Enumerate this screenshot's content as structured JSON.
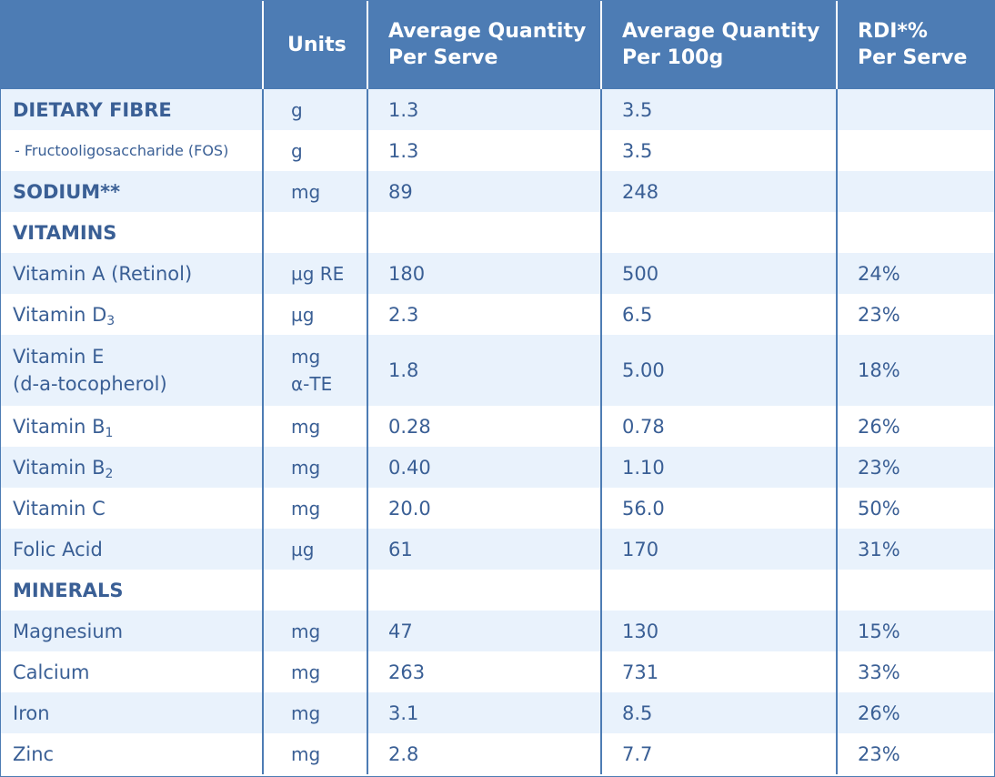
{
  "table": {
    "headers": [
      "",
      "Units",
      "Average Quantity\nPer Serve",
      "Average Quantity\nPer 100g",
      "RDI*%\nPer Serve"
    ],
    "rows": [
      {
        "label": "DIETARY FIBRE",
        "unit": "g",
        "serve": "1.3",
        "per100": "3.5",
        "rdi": ""
      },
      {
        "label": "- Fructooligosaccharide (FOS)",
        "unit": "g",
        "serve": "1.3",
        "per100": "3.5",
        "rdi": ""
      },
      {
        "label": "SODIUM**",
        "unit": "mg",
        "serve": "89",
        "per100": "248",
        "rdi": ""
      },
      {
        "label": "VITAMINS",
        "unit": "",
        "serve": "",
        "per100": "",
        "rdi": ""
      },
      {
        "label": "Vitamin A (Retinol)",
        "unit": "µg RE",
        "serve": "180",
        "per100": "500",
        "rdi": "24%"
      },
      {
        "label": "Vitamin D",
        "label_sub": "3",
        "unit": "µg",
        "serve": "2.3",
        "per100": "6.5",
        "rdi": "23%"
      },
      {
        "label": "Vitamin E",
        "label_line2": "(d-a-tocopherol)",
        "unit": "mg",
        "unit_line2": "α-TE",
        "serve": "1.8",
        "per100": "5.00",
        "rdi": "18%"
      },
      {
        "label": "Vitamin B",
        "label_sub": "1",
        "unit": "mg",
        "serve": "0.28",
        "per100": "0.78",
        "rdi": "26%"
      },
      {
        "label": "Vitamin B",
        "label_sub": "2",
        "unit": "mg",
        "serve": "0.40",
        "per100": "1.10",
        "rdi": "23%"
      },
      {
        "label": "Vitamin C",
        "unit": "mg",
        "serve": "20.0",
        "per100": "56.0",
        "rdi": "50%"
      },
      {
        "label": "Folic Acid",
        "unit": "µg",
        "serve": "61",
        "per100": "170",
        "rdi": "31%"
      },
      {
        "label": "MINERALS",
        "unit": "",
        "serve": "",
        "per100": "",
        "rdi": ""
      },
      {
        "label": "Magnesium",
        "unit": "mg",
        "serve": "47",
        "per100": "130",
        "rdi": "15%"
      },
      {
        "label": "Calcium",
        "unit": "mg",
        "serve": "263",
        "per100": "731",
        "rdi": "33%"
      },
      {
        "label": "Iron",
        "unit": "mg",
        "serve": "3.1",
        "per100": "8.5",
        "rdi": "26%"
      },
      {
        "label": "Zinc",
        "unit": "mg",
        "serve": "2.8",
        "per100": "7.7",
        "rdi": "23%"
      }
    ]
  },
  "colors": {
    "header_bg": "#4d7cb4",
    "header_text": "#ffffff",
    "row_alt_bg": "#e9f2fc",
    "text": "#3a5f95"
  }
}
